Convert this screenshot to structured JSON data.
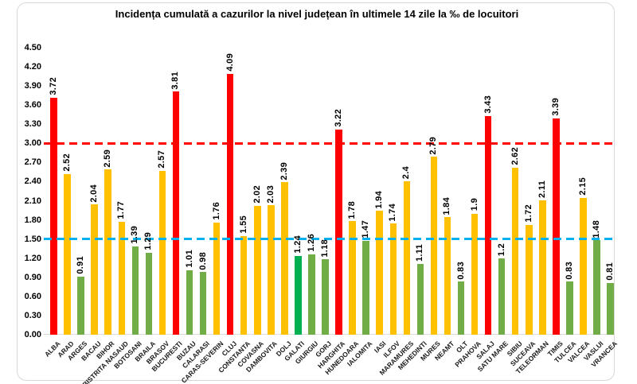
{
  "title": "Incidența cumulată a cazurilor la nivel județean în ultimele 14 zile la ‰ de locuitori",
  "chart_data": {
    "type": "bar",
    "title": "Incidența cumulată a cazurilor la nivel județean în ultimele 14 zile la ‰ de locuitori",
    "xlabel": "",
    "ylabel": "",
    "ylim": [
      0,
      4.5
    ],
    "grid": false,
    "legend": "none",
    "yticks": [
      "0.00",
      "0.30",
      "0.60",
      "0.90",
      "1.20",
      "1.50",
      "1.80",
      "2.10",
      "2.40",
      "2.70",
      "3.00",
      "3.30",
      "3.60",
      "3.90",
      "4.20",
      "4.50"
    ],
    "categories": [
      "ALBA",
      "ARAD",
      "ARGES",
      "BACAU",
      "BIHOR",
      "BISTRITA NASAUD",
      "BOTOSANI",
      "BRAILA",
      "BRASOV",
      "BUCURESTI",
      "BUZAU",
      "CALARASI",
      "CARAS-SEVERIN",
      "CLUJ",
      "CONSTANTA",
      "COVASNA",
      "DAMBOVITA",
      "DOLJ",
      "GALATI",
      "GIURGIU",
      "GORJ",
      "HARGHITA",
      "HUNEDOARA",
      "IALOMITA",
      "IASI",
      "ILFOV",
      "MARAMURES",
      "MEHEDINTI",
      "MURES",
      "NEAMT",
      "OLT",
      "PRAHOVA",
      "SALAJ",
      "SATU MARE",
      "SIBIU",
      "SUCEAVA",
      "TELEORMAN",
      "TIMIS",
      "TULCEA",
      "VALCEA",
      "VASLUI",
      "VRANCEA"
    ],
    "values": [
      "3.72",
      "2.52",
      "0.91",
      "2.04",
      "2.59",
      "1.77",
      "1.39",
      "1.29",
      "2.57",
      "3.81",
      "1.01",
      "0.98",
      "1.76",
      "4.09",
      "1.55",
      "2.02",
      "2.03",
      "2.39",
      "1.24",
      "1.26",
      "1.18",
      "3.22",
      "1.78",
      "1.47",
      "1.94",
      "1.74",
      "2.4",
      "1.11",
      "2.79",
      "1.84",
      "0.83",
      "1.9",
      "3.43",
      "1.2",
      "2.62",
      "1.72",
      "2.11",
      "3.39",
      "0.83",
      "2.15",
      "1.48",
      "0.81"
    ],
    "bar_levels": [
      "red",
      "amber",
      "green",
      "amber",
      "amber",
      "amber",
      "green",
      "green",
      "amber",
      "red",
      "green",
      "green",
      "amber",
      "red",
      "amber",
      "amber",
      "amber",
      "amber",
      "teal",
      "green",
      "green",
      "red",
      "amber",
      "green",
      "amber",
      "amber",
      "amber",
      "green",
      "amber",
      "amber",
      "green",
      "amber",
      "red",
      "green",
      "amber",
      "amber",
      "amber",
      "red",
      "green",
      "amber",
      "green",
      "green"
    ],
    "level_colors": {
      "red": "#FF0000",
      "amber": "#FFC000",
      "green": "#70AD47",
      "teal": "#00B050"
    },
    "reference_lines": [
      {
        "name": "red-threshold",
        "value": 3.0,
        "color": "#FF0000",
        "style": "dashed"
      },
      {
        "name": "blue-threshold",
        "value": 1.5,
        "color": "#00B0F0",
        "style": "dashed"
      }
    ]
  }
}
